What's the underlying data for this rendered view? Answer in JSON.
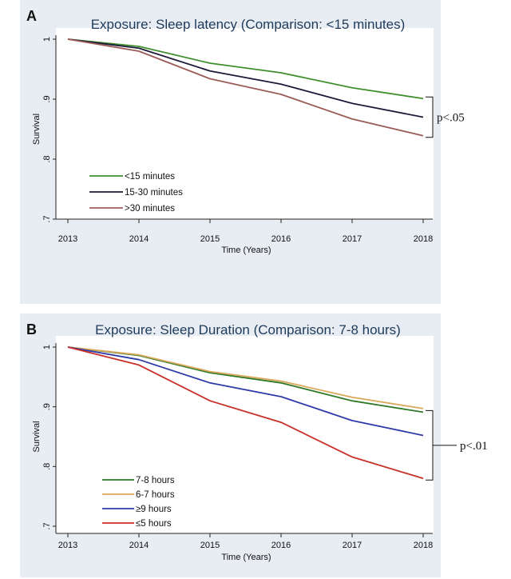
{
  "chart_data": [
    {
      "panel": "A",
      "type": "line",
      "title": "Exposure: Sleep latency (Comparison: <15 minutes)",
      "xlabel": "Time (Years)",
      "ylabel": "Survival",
      "x": [
        2013,
        2014,
        2015,
        2016,
        2017,
        2018
      ],
      "xlim": [
        2013,
        2018
      ],
      "ylim": [
        0.7,
        1.0
      ],
      "yticks": [
        1,
        0.9,
        0.8,
        0.7
      ],
      "ytick_labels": [
        "1",
        ".9",
        ".8",
        ".7"
      ],
      "grid": false,
      "legend_position": "bottom-left",
      "series": [
        {
          "name": "<15 minutes",
          "color": "#3f8f2e",
          "values": [
            1.0,
            0.988,
            0.96,
            0.944,
            0.919,
            0.901
          ]
        },
        {
          "name": "15-30 minutes",
          "color": "#1c1c3a",
          "values": [
            1.0,
            0.985,
            0.947,
            0.925,
            0.893,
            0.87
          ]
        },
        {
          "name": ">30 minutes",
          "color": "#9b5b58",
          "values": [
            1.0,
            0.98,
            0.934,
            0.908,
            0.867,
            0.839
          ]
        }
      ],
      "annotation": {
        "text": "p<.05",
        "from": 0.901,
        "to": 0.839
      }
    },
    {
      "panel": "B",
      "type": "line",
      "title": "Exposure: Sleep Duration (Comparison: 7-8 hours)",
      "xlabel": "Time (Years)",
      "ylabel": "Survival",
      "x": [
        2013,
        2014,
        2015,
        2016,
        2017,
        2018
      ],
      "xlim": [
        2013,
        2018
      ],
      "ylim": [
        0.7,
        1.0
      ],
      "yticks": [
        1,
        0.9,
        0.8,
        0.7
      ],
      "ytick_labels": [
        "1",
        ".9",
        ".8",
        ".7"
      ],
      "grid": false,
      "legend_position": "bottom-left",
      "series": [
        {
          "name": "7-8 hours",
          "color": "#2f7a2a",
          "values": [
            1.0,
            0.986,
            0.957,
            0.94,
            0.91,
            0.891
          ]
        },
        {
          "name": "6-7 hours",
          "color": "#d9a85a",
          "values": [
            1.0,
            0.987,
            0.959,
            0.943,
            0.916,
            0.897
          ]
        },
        {
          "name": "≥9 hours",
          "color": "#2e3aa8",
          "values": [
            1.0,
            0.979,
            0.94,
            0.917,
            0.877,
            0.852
          ]
        },
        {
          "name": "≤5 hours",
          "color": "#c8302a",
          "values": [
            1.0,
            0.97,
            0.91,
            0.874,
            0.816,
            0.78
          ]
        }
      ],
      "annotation": {
        "text": "p<.01",
        "from": 0.891,
        "to": 0.78
      }
    }
  ],
  "panels": {
    "a_letter": "A",
    "b_letter": "B"
  }
}
